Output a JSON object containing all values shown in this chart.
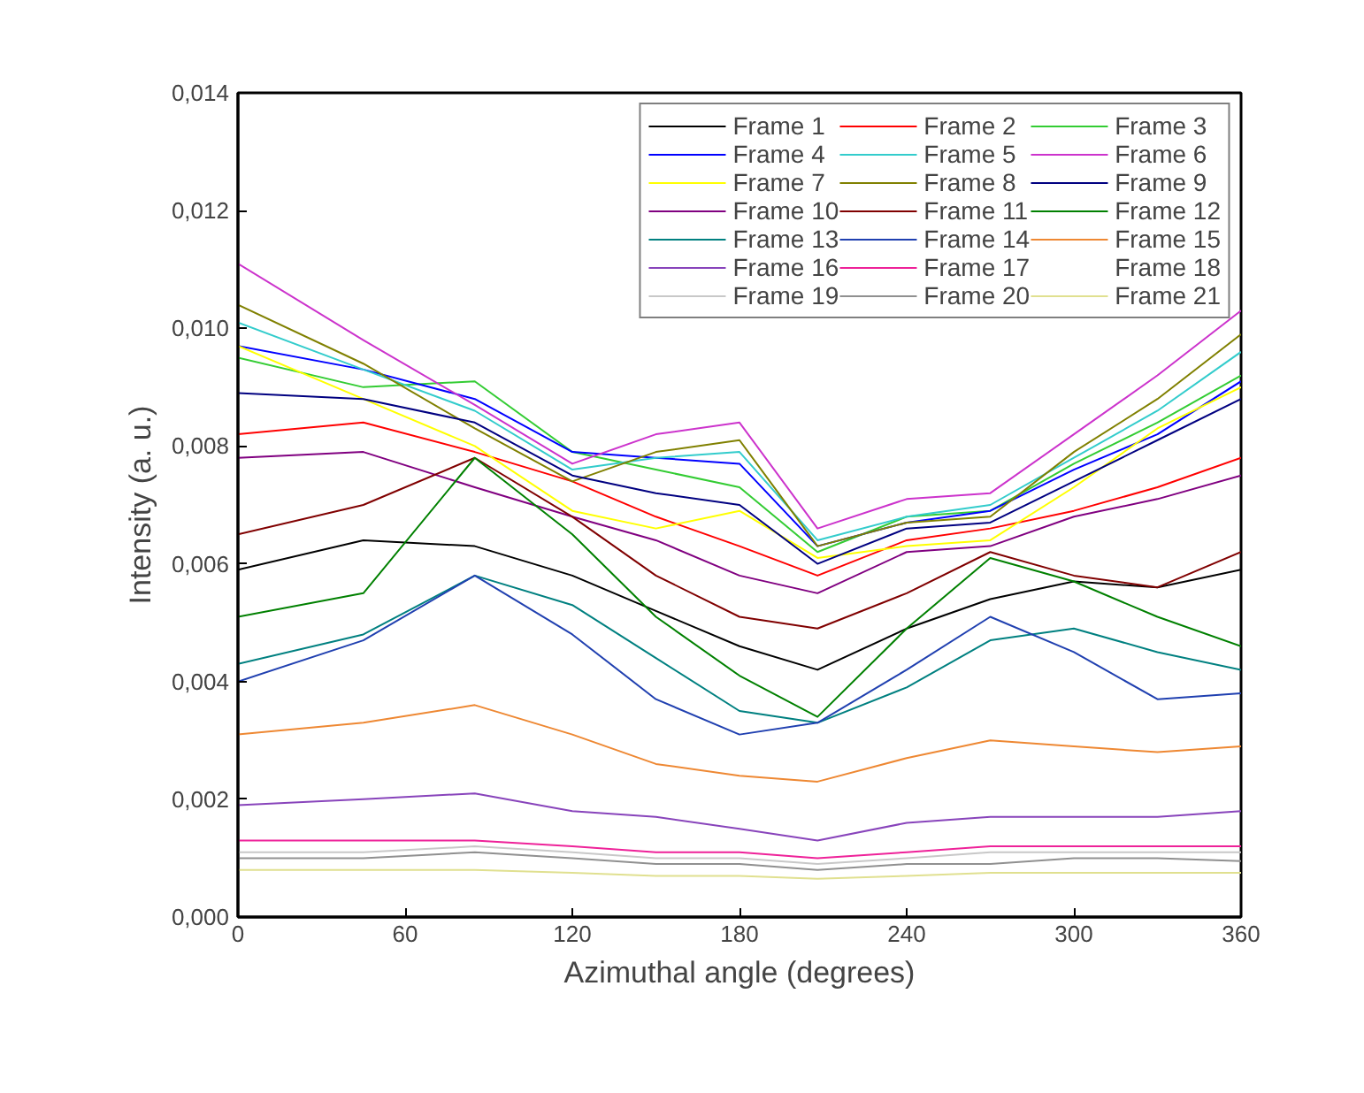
{
  "chart_data": {
    "type": "line",
    "xlabel": "Azimuthal angle (degrees)",
    "ylabel": "Intensity (a. u.)",
    "x": [
      0,
      45,
      85,
      120,
      150,
      180,
      208,
      240,
      270,
      300,
      330,
      360
    ],
    "xlim": [
      0,
      360
    ],
    "xticks": [
      0,
      60,
      120,
      180,
      240,
      300,
      360
    ],
    "ylim": [
      0,
      0.014
    ],
    "yticks": [
      {
        "value": 0,
        "label": "0,000"
      },
      {
        "value": 0.002,
        "label": "0,002"
      },
      {
        "value": 0.004,
        "label": "0,004"
      },
      {
        "value": 0.006,
        "label": "0,006"
      },
      {
        "value": 0.008,
        "label": "0,008"
      },
      {
        "value": 0.01,
        "label": "0,010"
      },
      {
        "value": 0.012,
        "label": "0,012"
      },
      {
        "value": 0.014,
        "label": "0,014"
      }
    ],
    "grid": false,
    "legend": "top right",
    "marker": "none",
    "line_style": "solid",
    "series": [
      {
        "name": "Frame 1",
        "color": "#000000",
        "values": [
          0.0059,
          0.0064,
          0.0063,
          0.0058,
          0.0052,
          0.0046,
          0.0042,
          0.0049,
          0.0054,
          0.0057,
          0.0056,
          0.0059
        ]
      },
      {
        "name": "Frame 2",
        "color": "#ff0000",
        "values": [
          0.0082,
          0.0084,
          0.0079,
          0.0074,
          0.0068,
          0.0063,
          0.0058,
          0.0064,
          0.0066,
          0.0069,
          0.0073,
          0.0078
        ]
      },
      {
        "name": "Frame 3",
        "color": "#33cc33",
        "values": [
          0.0095,
          0.009,
          0.0091,
          0.0079,
          0.0076,
          0.0073,
          0.0062,
          0.0068,
          0.0069,
          0.0077,
          0.0084,
          0.0092
        ]
      },
      {
        "name": "Frame 4",
        "color": "#0000ff",
        "values": [
          0.0097,
          0.0093,
          0.0088,
          0.0079,
          0.0078,
          0.0077,
          0.0063,
          0.0067,
          0.0069,
          0.0076,
          0.0082,
          0.0091
        ]
      },
      {
        "name": "Frame 5",
        "color": "#33cccc",
        "values": [
          0.0101,
          0.0093,
          0.0086,
          0.0076,
          0.0078,
          0.0079,
          0.0064,
          0.0068,
          0.007,
          0.0078,
          0.0086,
          0.0096
        ]
      },
      {
        "name": "Frame 6",
        "color": "#cc33cc",
        "values": [
          0.0111,
          0.0098,
          0.0087,
          0.0077,
          0.0082,
          0.0084,
          0.0066,
          0.0071,
          0.0072,
          0.0082,
          0.0092,
          0.0103
        ]
      },
      {
        "name": "Frame 7",
        "color": "#ffff00",
        "values": [
          0.0097,
          0.0088,
          0.008,
          0.0069,
          0.0066,
          0.0069,
          0.0061,
          0.0063,
          0.0064,
          0.0073,
          0.0083,
          0.009
        ]
      },
      {
        "name": "Frame 8",
        "color": "#808000",
        "values": [
          0.0104,
          0.0094,
          0.0083,
          0.0074,
          0.0079,
          0.0081,
          0.0063,
          0.0067,
          0.0068,
          0.0079,
          0.0088,
          0.0099
        ]
      },
      {
        "name": "Frame 9",
        "color": "#000080",
        "values": [
          0.0089,
          0.0088,
          0.0084,
          0.0075,
          0.0072,
          0.007,
          0.006,
          0.0066,
          0.0067,
          0.0074,
          0.0081,
          0.0088
        ]
      },
      {
        "name": "Frame 10",
        "color": "#800080",
        "values": [
          0.0078,
          0.0079,
          0.0073,
          0.0068,
          0.0064,
          0.0058,
          0.0055,
          0.0062,
          0.0063,
          0.0068,
          0.0071,
          0.0075
        ]
      },
      {
        "name": "Frame 11",
        "color": "#800000",
        "values": [
          0.0065,
          0.007,
          0.0078,
          0.0068,
          0.0058,
          0.0051,
          0.0049,
          0.0055,
          0.0062,
          0.0058,
          0.0056,
          0.0062
        ]
      },
      {
        "name": "Frame 12",
        "color": "#008000",
        "values": [
          0.0051,
          0.0055,
          0.0078,
          0.0065,
          0.0051,
          0.0041,
          0.0034,
          0.0049,
          0.0061,
          0.0057,
          0.0051,
          0.0046
        ]
      },
      {
        "name": "Frame 13",
        "color": "#008080",
        "values": [
          0.0043,
          0.0048,
          0.0058,
          0.0053,
          0.0044,
          0.0035,
          0.0033,
          0.0039,
          0.0047,
          0.0049,
          0.0045,
          0.0042
        ]
      },
      {
        "name": "Frame 14",
        "color": "#2040b0",
        "values": [
          0.004,
          0.0047,
          0.0058,
          0.0048,
          0.0037,
          0.0031,
          0.0033,
          0.0042,
          0.0051,
          0.0045,
          0.0037,
          0.0038
        ]
      },
      {
        "name": "Frame 15",
        "color": "#ee8833",
        "values": [
          0.0031,
          0.0033,
          0.0036,
          0.0031,
          0.0026,
          0.0024,
          0.0023,
          0.0027,
          0.003,
          0.0029,
          0.0028,
          0.0029
        ]
      },
      {
        "name": "Frame 16",
        "color": "#8844bb",
        "values": [
          0.0019,
          0.002,
          0.0021,
          0.0018,
          0.0017,
          0.0015,
          0.0013,
          0.0016,
          0.0017,
          0.0017,
          0.0017,
          0.0018
        ]
      },
      {
        "name": "Frame 17",
        "color": "#ee2299",
        "values": [
          0.0013,
          0.0013,
          0.0013,
          0.0012,
          0.0011,
          0.0011,
          0.001,
          0.0011,
          0.0012,
          0.0012,
          0.0012,
          0.0012
        ]
      },
      {
        "name": "Frame 18",
        "values": [
          null,
          null,
          null,
          null,
          null,
          null,
          null,
          null,
          null,
          null,
          null,
          null
        ]
      },
      {
        "name": "Frame 19",
        "color": "#c8c8c8",
        "values": [
          0.0011,
          0.0011,
          0.0012,
          0.0011,
          0.001,
          0.001,
          0.0009,
          0.001,
          0.0011,
          0.0011,
          0.0011,
          0.0011
        ]
      },
      {
        "name": "Frame 20",
        "color": "#909090",
        "values": [
          0.001,
          0.001,
          0.0011,
          0.001,
          0.0009,
          0.0009,
          0.0008,
          0.0009,
          0.0009,
          0.001,
          0.001,
          0.00095
        ]
      },
      {
        "name": "Frame 21",
        "color": "#e0e090",
        "values": [
          0.0008,
          0.0008,
          0.0008,
          0.00075,
          0.0007,
          0.0007,
          0.00065,
          0.0007,
          0.00075,
          0.00075,
          0.00075,
          0.00075
        ]
      }
    ]
  }
}
